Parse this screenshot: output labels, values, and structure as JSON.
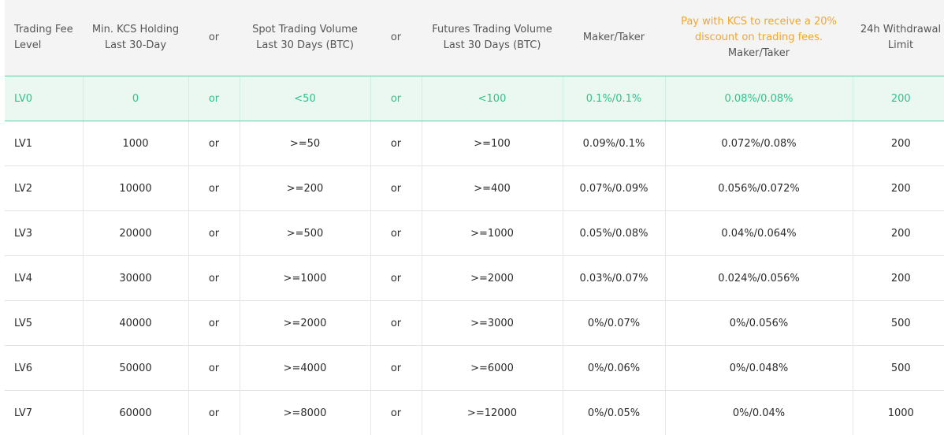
{
  "header": {
    "level": "Trading Fee Level",
    "kcs": [
      "Min. KCS Holding",
      "Last 30-Day"
    ],
    "or": "or",
    "spot": [
      "Spot Trading Volume",
      "Last 30 Days (BTC)"
    ],
    "futures": [
      "Futures Trading Volume",
      "Last 30 Days (BTC)"
    ],
    "maker_taker": "Maker/Taker",
    "promo": [
      "Pay with KCS to receive a 20%",
      "discount on trading fees."
    ],
    "promo_sub": "Maker/Taker",
    "withdrawal": "24h Withdrawal Limit"
  },
  "rows": [
    {
      "level": "LV0",
      "kcs": "0",
      "or1": "or",
      "spot": "<50",
      "or2": "or",
      "futures": "<100",
      "fee": "0.1%/0.1%",
      "kcs_fee": "0.08%/0.08%",
      "limit": "200"
    },
    {
      "level": "LV1",
      "kcs": "1000",
      "or1": "or",
      "spot": ">=50",
      "or2": "or",
      "futures": ">=100",
      "fee": "0.09%/0.1%",
      "kcs_fee": "0.072%/0.08%",
      "limit": "200"
    },
    {
      "level": "LV2",
      "kcs": "10000",
      "or1": "or",
      "spot": ">=200",
      "or2": "or",
      "futures": ">=400",
      "fee": "0.07%/0.09%",
      "kcs_fee": "0.056%/0.072%",
      "limit": "200"
    },
    {
      "level": "LV3",
      "kcs": "20000",
      "or1": "or",
      "spot": ">=500",
      "or2": "or",
      "futures": ">=1000",
      "fee": "0.05%/0.08%",
      "kcs_fee": "0.04%/0.064%",
      "limit": "200"
    },
    {
      "level": "LV4",
      "kcs": "30000",
      "or1": "or",
      "spot": ">=1000",
      "or2": "or",
      "futures": ">=2000",
      "fee": "0.03%/0.07%",
      "kcs_fee": "0.024%/0.056%",
      "limit": "200"
    },
    {
      "level": "LV5",
      "kcs": "40000",
      "or1": "or",
      "spot": ">=2000",
      "or2": "or",
      "futures": ">=3000",
      "fee": "0%/0.07%",
      "kcs_fee": "0%/0.056%",
      "limit": "500"
    },
    {
      "level": "LV6",
      "kcs": "50000",
      "or1": "or",
      "spot": ">=4000",
      "or2": "or",
      "futures": ">=6000",
      "fee": "0%/0.06%",
      "kcs_fee": "0%/0.048%",
      "limit": "500"
    },
    {
      "level": "LV7",
      "kcs": "60000",
      "or1": "or",
      "spot": ">=8000",
      "or2": "or",
      "futures": ">=12000",
      "fee": "0%/0.05%",
      "kcs_fee": "0%/0.04%",
      "limit": "1000"
    }
  ],
  "colors": {
    "accent": "#31c28b",
    "highlight_bg": "#eaf8f1",
    "promo": "#f5a623",
    "header_bg": "#f4f4f4"
  }
}
